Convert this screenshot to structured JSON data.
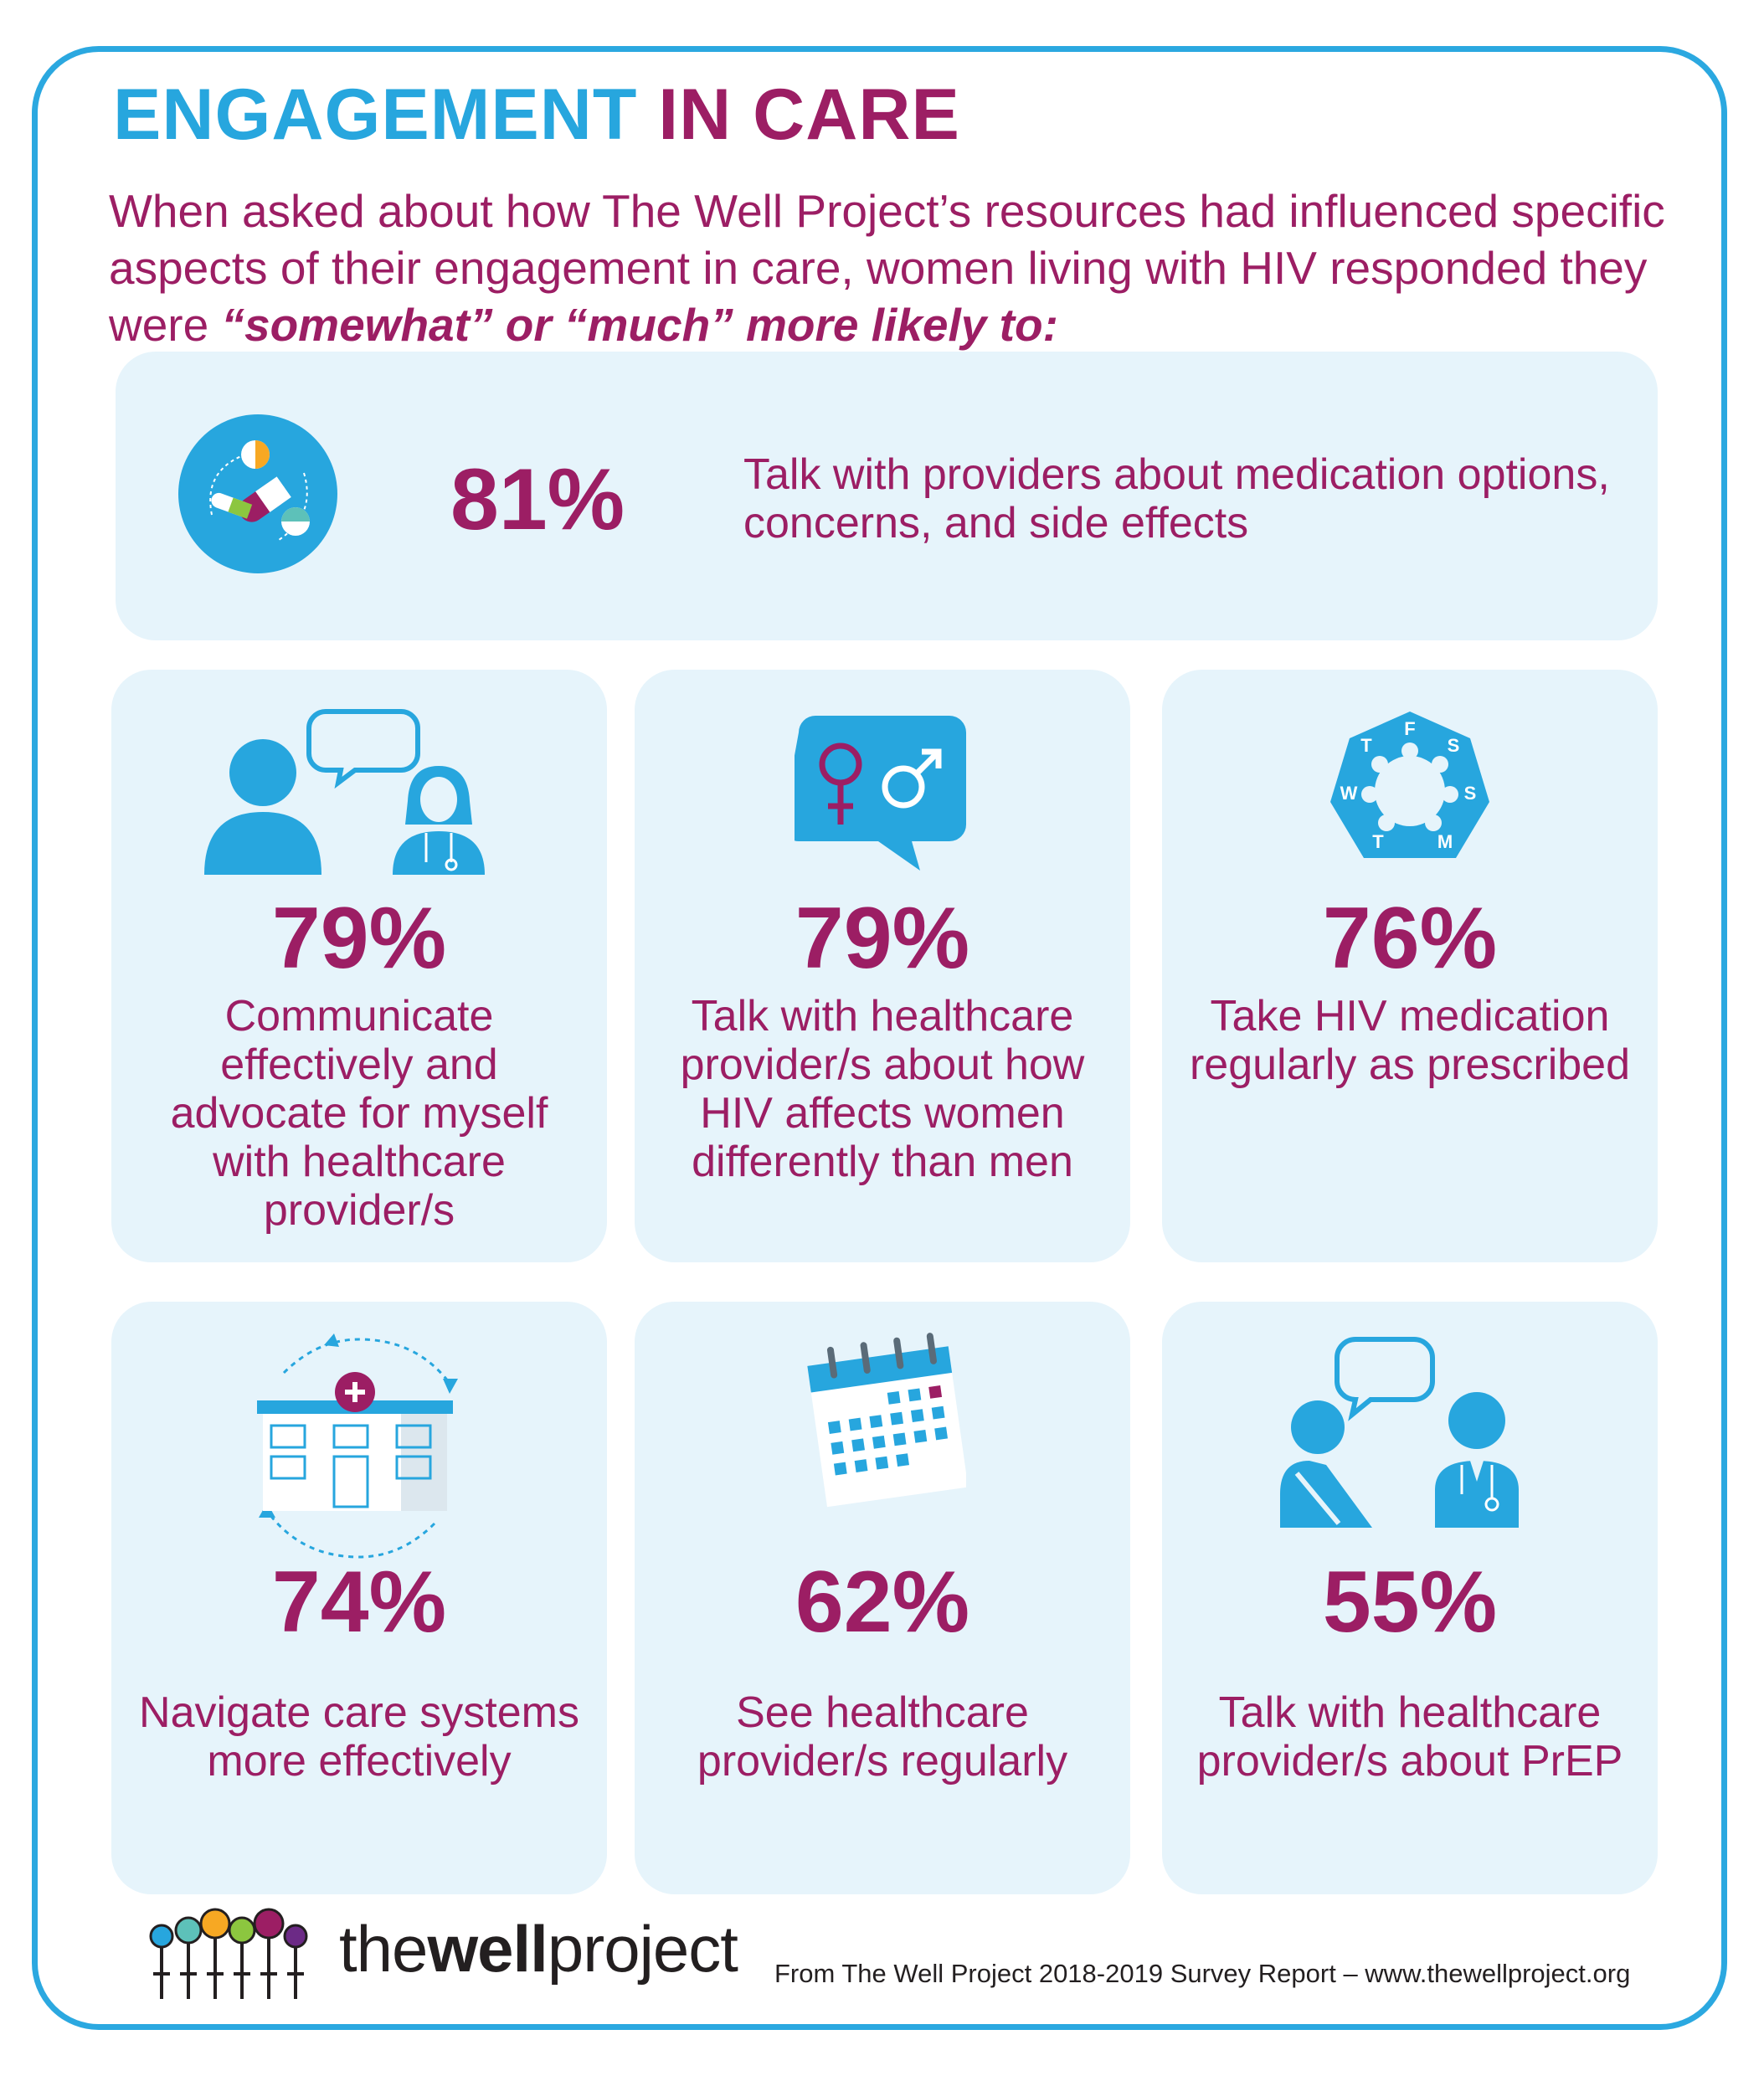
{
  "header": {
    "title_part1": "ENGAGEMENT",
    "title_part2": "IN CARE",
    "intro_line": "When asked about how The Well Project’s resources had influenced specific aspects of their engagement in care, women living with HIV responded they were",
    "intro_emph1": "“somewhat”",
    "intro_or": "or",
    "intro_emph2": "“much” more likely to:"
  },
  "stats": {
    "medication": {
      "percent": "81%",
      "text": "Talk with providers about medication options, concerns, and side effects",
      "icon": "pills-icon"
    },
    "communicate": {
      "percent": "79%",
      "text": "Communicate effectively and advocate for myself with healthcare provider/s",
      "icon": "patient-doctor-chat-icon"
    },
    "women_vs_men": {
      "percent": "79%",
      "text": "Talk with healthcare provider/s about how HIV affects women differently than men",
      "icon": "gender-symbols-icon"
    },
    "adherence": {
      "percent": "76%",
      "text": "Take HIV medication regularly as prescribed",
      "icon": "weekly-pillbox-icon"
    },
    "navigate": {
      "percent": "74%",
      "text": "Navigate care systems more effectively",
      "icon": "hospital-cycle-icon"
    },
    "visits": {
      "percent": "62%",
      "text": "See healthcare provider/s regularly",
      "icon": "calendar-icon"
    },
    "prep": {
      "percent": "55%",
      "text": "Talk with healthcare provider/s about PrEP",
      "icon": "consultation-icon"
    }
  },
  "pillbox_days": [
    "F",
    "S",
    "S",
    "M",
    "T",
    "W",
    "T"
  ],
  "footer": {
    "logo_light1": "the",
    "logo_bold": "well",
    "logo_light2": "project",
    "source": "From The Well Project 2018-2019 Survey Report – www.thewellproject.org"
  },
  "colors": {
    "blue": "#27a6de",
    "purple": "#9c1e64",
    "card_bg": "#e6f4fb"
  }
}
